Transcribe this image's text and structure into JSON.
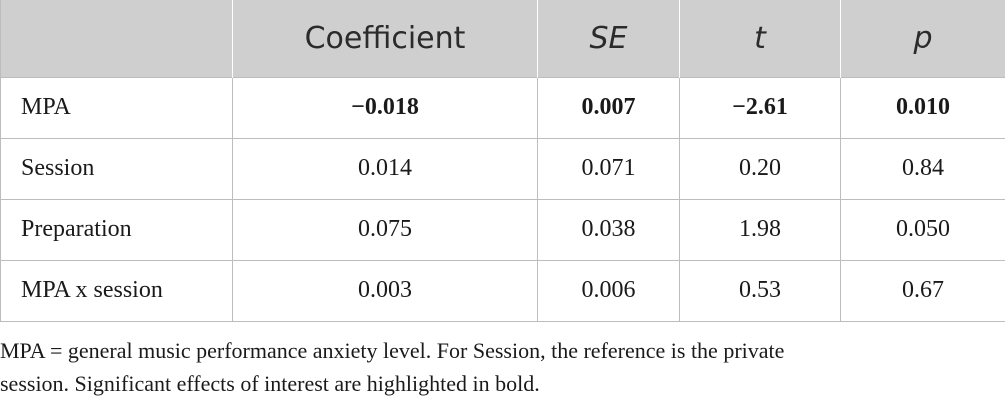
{
  "table": {
    "headers": [
      "",
      "Coefficient",
      "SE",
      "t",
      "p"
    ],
    "rows": [
      {
        "label": "MPA",
        "coefficient": "−0.018",
        "se": "0.007",
        "t": "−2.61",
        "p": "0.010",
        "bold": true
      },
      {
        "label": "Session",
        "coefficient": "0.014",
        "se": "0.071",
        "t": "0.20",
        "p": "0.84",
        "bold": false
      },
      {
        "label": "Preparation",
        "coefficient": "0.075",
        "se": "0.038",
        "t": "1.98",
        "p": "0.050",
        "bold": false
      },
      {
        "label": "MPA x session",
        "coefficient": "0.003",
        "se": "0.006",
        "t": "0.53",
        "p": "0.67",
        "bold": false
      }
    ]
  },
  "note": {
    "line1": "MPA = general music performance anxiety level. For Session, the reference is the private",
    "line2": "session. Significant effects of interest are highlighted in bold."
  }
}
